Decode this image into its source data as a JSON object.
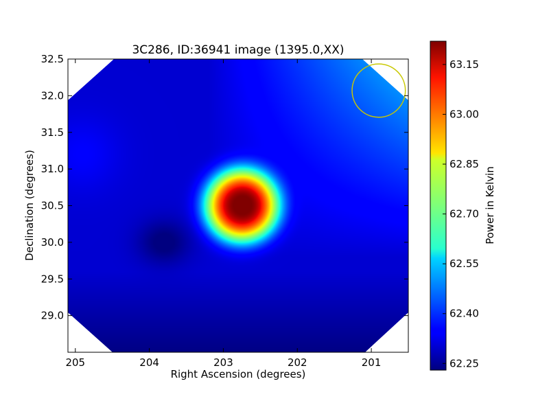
{
  "chart_data": {
    "type": "heatmap",
    "title": "3C286, ID:36941 image (1395.0,XX)",
    "xlabel": "Right Ascension (degrees)",
    "ylabel": "Declination (degrees)",
    "xlim": [
      205.1,
      200.5
    ],
    "ylim": [
      28.5,
      32.5
    ],
    "x_ticks": [
      205,
      204,
      203,
      202,
      201
    ],
    "x_tick_labels": [
      "205",
      "204",
      "203",
      "202",
      "201"
    ],
    "y_ticks": [
      29.0,
      29.5,
      30.0,
      30.5,
      31.0,
      31.5,
      32.0,
      32.5
    ],
    "y_tick_labels": [
      "29.0",
      "29.5",
      "30.0",
      "30.5",
      "31.0",
      "31.5",
      "32.0",
      "32.5"
    ],
    "colorbar": {
      "label": "Power in Kelvin",
      "range": [
        62.23,
        63.22
      ],
      "ticks": [
        62.25,
        62.4,
        62.55,
        62.7,
        62.85,
        63.0,
        63.15
      ],
      "tick_labels": [
        "62.25",
        "62.40",
        "62.55",
        "62.70",
        "62.85",
        "63.00",
        "63.15"
      ],
      "colormap": "jet"
    },
    "peak": {
      "ra": 202.75,
      "dec": 30.5,
      "value": 63.2
    },
    "minimum": {
      "ra": 203.8,
      "dec": 30.0,
      "value": 62.25
    },
    "beam_circle": {
      "ra": 200.9,
      "dec": 32.07,
      "radius_deg": 0.36,
      "color": "#c8c800"
    },
    "corner_masks": true
  }
}
